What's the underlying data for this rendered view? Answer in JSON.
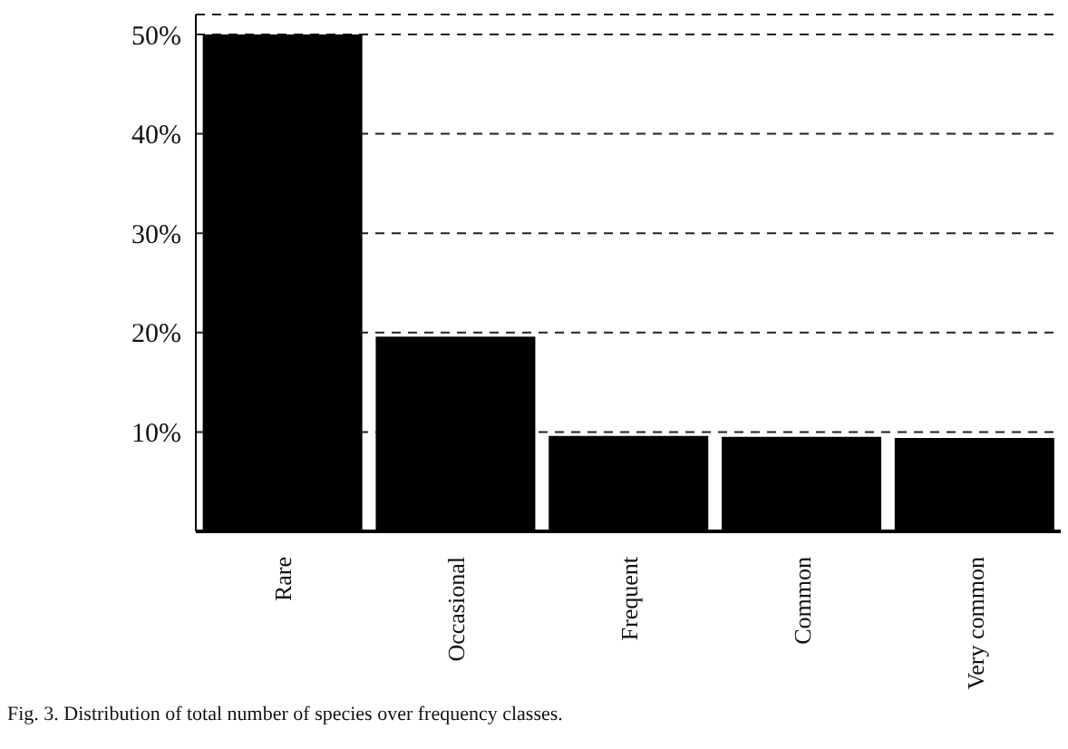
{
  "chart_data": {
    "type": "bar",
    "categories": [
      "Rare",
      "Occasional",
      "Frequent",
      "Common",
      "Very common"
    ],
    "values": [
      50,
      19.6,
      9.6,
      9.5,
      9.4
    ],
    "color": "#000000",
    "ylim": [
      0,
      52
    ],
    "yticks": [
      {
        "value": 0,
        "label": null
      },
      {
        "value": 10,
        "label": "10%"
      },
      {
        "value": 20,
        "label": "20%"
      },
      {
        "value": 30,
        "label": "30%"
      },
      {
        "value": 40,
        "label": "40%"
      },
      {
        "value": 50,
        "label": "50%"
      }
    ],
    "grid": "y",
    "legend": false,
    "annotations": [
      "Fig. 3. Distribution of total number of species over frequency classes."
    ]
  }
}
